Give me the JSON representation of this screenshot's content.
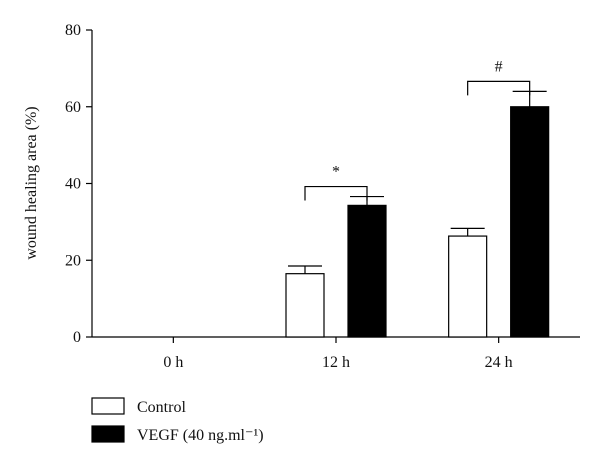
{
  "chart_data": {
    "type": "bar",
    "title": "",
    "xlabel": "",
    "ylabel": "wound healing area (%)",
    "ylim": [
      0,
      80
    ],
    "yticks": [
      0,
      20,
      40,
      60,
      80
    ],
    "categories": [
      "0 h",
      "12 h",
      "24 h"
    ],
    "series": [
      {
        "name": "Control",
        "values": [
          0,
          16.5,
          26.3
        ],
        "errors": [
          0,
          2.0,
          2.0
        ],
        "color": "#ffffff"
      },
      {
        "name": "VEGF (40 ng.ml⁻¹)",
        "values": [
          0,
          34.3,
          60.0
        ],
        "errors": [
          0,
          2.3,
          4.0
        ],
        "color": "#000000"
      }
    ],
    "significance": [
      {
        "category": "12 h",
        "label": "*"
      },
      {
        "category": "24 h",
        "label": "#"
      }
    ],
    "grid": false,
    "legend_position": "bottom-left"
  }
}
